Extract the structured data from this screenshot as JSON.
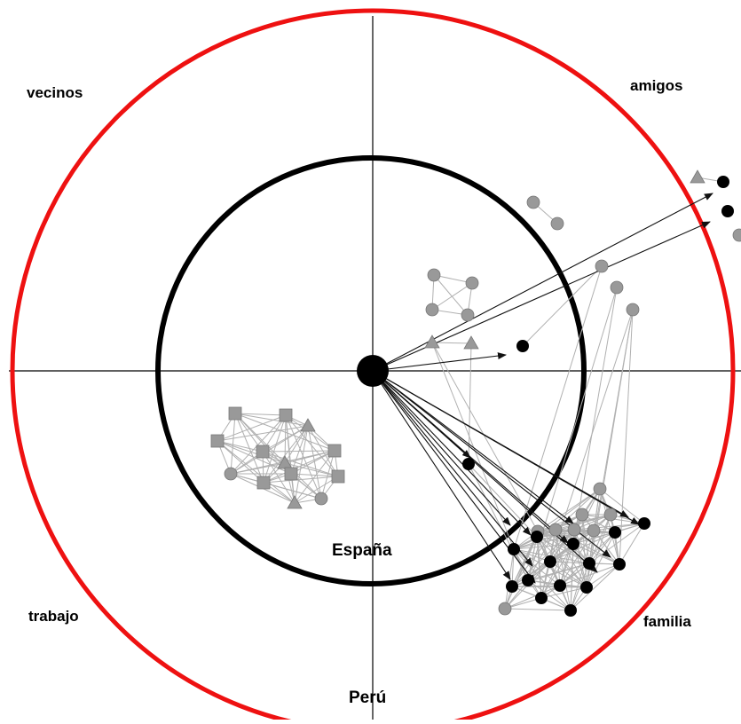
{
  "labels": {
    "vecinos": "vecinos",
    "amigos": "amigos",
    "trabajo": "trabajo",
    "familia": "familia",
    "espana": "España",
    "peru": "Perú"
  },
  "colors": {
    "outer_ring": "#ee1111",
    "inner_ring": "#000000",
    "node_black": "#000000",
    "node_gray": "#999999",
    "edge_gray": "#b0b0b0",
    "arrow": "#111111"
  },
  "icons": {
    "ego": "ego-node-icon",
    "black": "black-circle-node-icon",
    "gray_circle": "gray-circle-node-icon",
    "gray_square": "gray-square-node-icon",
    "gray_triangle": "gray-triangle-node-icon"
  }
}
